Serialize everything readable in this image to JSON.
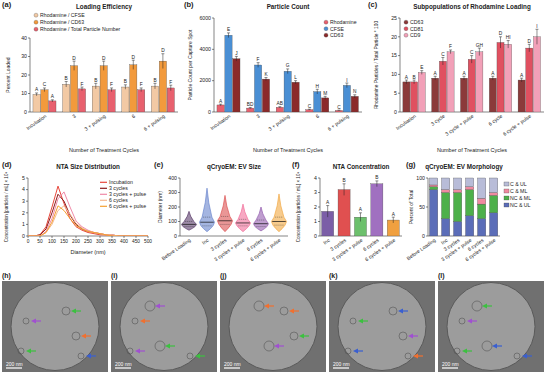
{
  "chart_data": [
    {
      "panel_label": "(a)",
      "type": "bar",
      "title": "Loading Efficiency",
      "x_label": "Number of Treatment Cycles",
      "y_label": "Percent Loaded",
      "categories": [
        "Incubation",
        "3",
        "3 + pulsing",
        "6",
        "6 + pulsing"
      ],
      "ylim": [
        0,
        40
      ],
      "yticks": [
        0,
        10,
        20,
        30,
        40
      ],
      "legend": "top",
      "series": [
        {
          "name": "Rhodamine / CFSE",
          "color": "#f2c9a4",
          "values": [
            9.5,
            15,
            14,
            13.5,
            14
          ],
          "errors": [
            0.8,
            1.5,
            1.5,
            1.2,
            1.5
          ],
          "letters": [
            "A",
            "B",
            "B",
            "B",
            "B"
          ]
        },
        {
          "name": "Rhodamine / CD63",
          "color": "#f29a3c",
          "values": [
            12,
            25,
            25,
            25.5,
            27.5
          ],
          "errors": [
            1,
            2.5,
            2.5,
            2.5,
            4
          ],
          "letters": [
            "C",
            "D",
            "D",
            "D",
            "D"
          ]
        },
        {
          "name": "Rhodamine / Total Particle Number",
          "color": "#e8606e",
          "values": [
            6,
            12.5,
            12,
            12,
            13
          ],
          "errors": [
            0.6,
            1,
            1,
            1,
            1.5
          ],
          "letters": [
            "A",
            "F",
            "F",
            "F",
            "F"
          ]
        }
      ]
    },
    {
      "panel_label": "(b)",
      "type": "bar",
      "title": "Particle Count",
      "x_label": "Number of Treatment Cycles",
      "y_label": "Particle Count per Capture Spot",
      "categories": [
        "Incubation",
        "3",
        "3 + pulsing",
        "6",
        "6 + pulsing"
      ],
      "ylim": [
        0,
        6000
      ],
      "yticks": [
        0,
        2000,
        4000,
        6000
      ],
      "legend": "top-right",
      "series": [
        {
          "name": "Rhodamine",
          "color": "#e8606e",
          "values": [
            450,
            250,
            300,
            150,
            100
          ],
          "errors": [
            50,
            40,
            40,
            30,
            20
          ],
          "letters": [
            "A",
            "BD",
            "AB",
            "C",
            "C"
          ]
        },
        {
          "name": "CFSE",
          "color": "#4a8fd4",
          "values": [
            4900,
            3000,
            2600,
            1300,
            1700
          ],
          "errors": [
            150,
            150,
            150,
            150,
            150
          ],
          "letters": [
            "E",
            "F",
            "G",
            "H",
            "I"
          ]
        },
        {
          "name": "CD63",
          "color": "#8b2a2a",
          "values": [
            3400,
            2100,
            1900,
            900,
            1000
          ],
          "errors": [
            150,
            100,
            100,
            100,
            100
          ],
          "letters": [
            "J",
            "K",
            "L",
            "M",
            "N"
          ]
        }
      ]
    },
    {
      "panel_label": "(c)",
      "type": "bar",
      "title": "Subpopulations of Rhodamine Loading",
      "x_label": "Number of Treatment Cycles",
      "y_label": "Rhodamine Particles / Total Particle * 100",
      "categories": [
        "Incubation",
        "3 cycle",
        "3 cycle + pulse",
        "6 cycle",
        "6 cycle + pulse"
      ],
      "ylim": [
        0,
        25
      ],
      "yticks": [
        0,
        5,
        10,
        15,
        20,
        25
      ],
      "legend": "top-left",
      "series": [
        {
          "name": "CD63",
          "color": "#8b3a3a",
          "values": [
            8,
            9,
            9,
            9,
            8.5
          ],
          "errors": [
            0.5,
            0.5,
            0.5,
            0.5,
            0.5
          ],
          "letters": [
            "A",
            "A",
            "A",
            "A",
            "A"
          ]
        },
        {
          "name": "CD81",
          "color": "#e05060",
          "values": [
            8,
            13.5,
            14,
            18.5,
            17
          ],
          "errors": [
            0.5,
            1,
            1,
            1.5,
            1
          ],
          "letters": [
            "B",
            "C",
            "C",
            "D",
            "D"
          ]
        },
        {
          "name": "CD9",
          "color": "#f2a0b8",
          "values": [
            10.5,
            16,
            16,
            18,
            20
          ],
          "errors": [
            0.5,
            0.5,
            1,
            1,
            2
          ],
          "letters": [
            "E",
            "F",
            "GH",
            "HI",
            "I"
          ]
        }
      ]
    },
    {
      "panel_label": "(d)",
      "type": "line",
      "title": "NTA Size Distribution",
      "x_label": "Diameter (nm)",
      "y_label": "Concentration [particles / mL] × 10⁸",
      "x": [
        0,
        25,
        50,
        75,
        100,
        125,
        150,
        175,
        200,
        225,
        250,
        275,
        300,
        325,
        350,
        375,
        400,
        425,
        450,
        475,
        500
      ],
      "xlim": [
        0,
        500
      ],
      "xticks": [
        0,
        50,
        100,
        150,
        200,
        250,
        300,
        350,
        400,
        450,
        500
      ],
      "ylim": [
        0,
        5
      ],
      "yticks": [
        0,
        1,
        2,
        3,
        4,
        5
      ],
      "legend": "top-right",
      "series": [
        {
          "name": "Incubation",
          "color": "#e8483c",
          "values": [
            0,
            0,
            0.1,
            0.8,
            2.5,
            4.3,
            2.8,
            1.5,
            0.8,
            0.5,
            0.3,
            0.2,
            0.1,
            0.1,
            0,
            0,
            0,
            0,
            0,
            0,
            0
          ]
        },
        {
          "name": "3 cycles",
          "color": "#8b1a1a",
          "values": [
            0,
            0,
            0.1,
            0.6,
            2,
            3.6,
            3,
            1.8,
            1,
            0.6,
            0.4,
            0.3,
            0.2,
            0.1,
            0.1,
            0,
            0,
            0,
            0,
            0,
            0
          ]
        },
        {
          "name": "3 cycles + pulse",
          "color": "#f08aa8",
          "values": [
            0,
            0,
            0,
            0.4,
            1.5,
            3.2,
            3.8,
            2.5,
            1.3,
            0.8,
            0.5,
            0.3,
            0.2,
            0.1,
            0.1,
            0,
            0,
            0,
            0,
            0,
            0
          ]
        },
        {
          "name": "6 cycles",
          "color": "#f5b990",
          "values": [
            0,
            0,
            0,
            0.3,
            1,
            2.2,
            2.6,
            1.9,
            1.1,
            0.7,
            0.4,
            0.3,
            0.2,
            0.1,
            0.1,
            0,
            0,
            0,
            0,
            0,
            0
          ]
        },
        {
          "name": "6 cycles + pulse",
          "color": "#f5a030",
          "values": [
            0,
            0,
            0,
            0.3,
            1.2,
            2.6,
            2.2,
            1.5,
            0.9,
            0.6,
            0.4,
            0.3,
            0.2,
            0.1,
            0,
            0,
            0,
            0,
            0,
            0,
            0
          ]
        }
      ]
    },
    {
      "panel_label": "(e)",
      "type": "violin",
      "title": "qCryoEM: EV Size",
      "y_label": "Diameter (nm)",
      "categories": [
        "Before Loading",
        "Inc",
        "3 cycles",
        "3 cycles + pulse",
        "6 cycles",
        "6 cycles + pulse"
      ],
      "ylim": [
        0,
        400
      ],
      "yticks": [
        0,
        100,
        200,
        300,
        400
      ],
      "colors": [
        "#4b2a5c",
        "#5a78c8",
        "#d94040",
        "#f06090",
        "#8a4fa8",
        "#f0a030"
      ],
      "min": [
        40,
        30,
        30,
        30,
        35,
        30
      ],
      "q1": [
        65,
        70,
        80,
        70,
        65,
        75
      ],
      "median": [
        80,
        95,
        105,
        90,
        85,
        100
      ],
      "q3": [
        100,
        130,
        135,
        115,
        110,
        130
      ],
      "max": [
        170,
        330,
        280,
        220,
        200,
        290
      ]
    },
    {
      "panel_label": "(f)",
      "type": "bar",
      "title": "NTA Concentration",
      "y_label": "Concentration [particles / mL] × 10⁸",
      "categories": [
        "Inc",
        "3 cycles",
        "3 cycles + pulse",
        "6 cycles",
        "6 cycles + pulse"
      ],
      "ylim": [
        0,
        4
      ],
      "yticks": [
        0,
        1,
        2,
        3,
        4
      ],
      "values": [
        1.7,
        3.2,
        1.3,
        3.6,
        1.1
      ],
      "errors": [
        0.4,
        0.4,
        0.3,
        0.2,
        0.2
      ],
      "letters": [
        "A",
        "B",
        "A",
        "B",
        "A"
      ],
      "colors": [
        "#7b5ea7",
        "#e05050",
        "#6cc06c",
        "#a070c0",
        "#f0a040"
      ]
    },
    {
      "panel_label": "(g)",
      "type": "bar",
      "stacked": true,
      "title": "qCryoEM: EV Morphology",
      "y_label": "Percent of Total",
      "categories": [
        "Before Loading",
        "Inc",
        "3 cycles",
        "3 cycles + pulse",
        "6 cycles",
        "6 cycles + pulse"
      ],
      "ylim": [
        0,
        100
      ],
      "yticks": [
        0,
        50,
        100
      ],
      "legend": "right",
      "series": [
        {
          "name": "NC & UL",
          "color": "#5b6db8",
          "values": [
            80,
            30,
            25,
            35,
            30,
            40
          ]
        },
        {
          "name": "NC & ML",
          "color": "#4db04a",
          "values": [
            5,
            45,
            50,
            45,
            25,
            30
          ]
        },
        {
          "name": "C & ML",
          "color": "#f08aa0",
          "values": [
            3,
            5,
            5,
            5,
            10,
            5
          ]
        },
        {
          "name": "C & UL",
          "color": "#b8bcd8",
          "values": [
            12,
            20,
            20,
            15,
            35,
            25
          ]
        }
      ]
    }
  ],
  "images": [
    {
      "label": "(h)",
      "scale_bar": "200 nm"
    },
    {
      "label": "(i)",
      "scale_bar": "200 nm"
    },
    {
      "label": "(j)",
      "scale_bar": "200 nm"
    },
    {
      "label": "(k)",
      "scale_bar": "200 nm"
    },
    {
      "label": "(l)",
      "scale_bar": "200 nm"
    }
  ]
}
